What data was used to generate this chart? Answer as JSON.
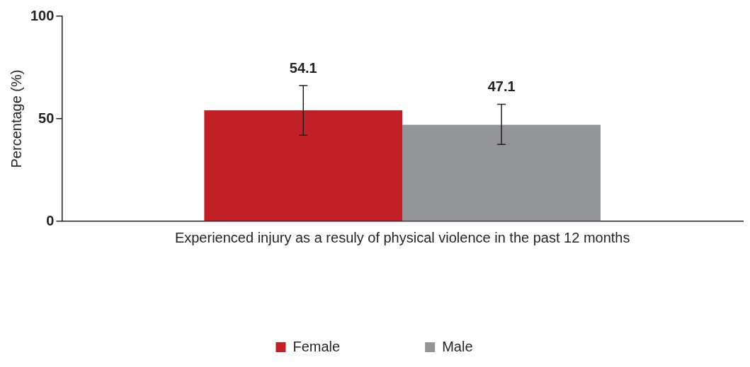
{
  "chart_data": {
    "type": "bar",
    "ylabel": "Percentage (%)",
    "categories": [
      "Experienced injury as a resuly of physical violence in the past 12 months"
    ],
    "series": [
      {
        "name": "Female",
        "color": "#c02026",
        "values": [
          54.1
        ],
        "errors": [
          [
            42,
            66.2
          ]
        ]
      },
      {
        "name": "Male",
        "color": "#939598",
        "values": [
          47.1
        ],
        "errors": [
          [
            37.5,
            57.1
          ]
        ]
      }
    ],
    "ylim": [
      0,
      100
    ],
    "yticks": [
      0,
      50,
      100
    ],
    "grid": false,
    "legend": "bottom",
    "data_labels": true
  }
}
